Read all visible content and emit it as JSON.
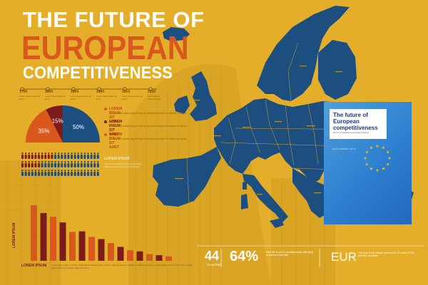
{
  "header": {
    "line1": "THE FUTURE OF",
    "line2": "EUROPEAN",
    "line3": "COMPETITIVENESS"
  },
  "timeline": {
    "years": [
      "1700",
      "1800",
      "1900",
      "1960",
      "2010",
      "2020"
    ],
    "captions": [
      "Lorem ipsum dolor sit amet",
      "Lorem ipsum dolor sit amet",
      "Lorem ipsum dolor sit amet",
      "Lorem ipsum dolor sit amet",
      "Lorem ipsum dolor sit amet",
      "Lorem ipsum dolor sit amet"
    ]
  },
  "pie": {
    "slices": [
      {
        "label": "50%",
        "value": 50,
        "color": "#1c4f80"
      },
      {
        "label": "35%",
        "value": 35,
        "color": "#d9581e"
      },
      {
        "label": "15%",
        "value": 15,
        "color": "#7d1a1a"
      }
    ]
  },
  "legend": [
    {
      "title": "LOREM IPSUM SIT AMET",
      "text": "Consectetur adipiscing elit sed do eiusmod tempor incididunt ut labore",
      "color": "#d9581e"
    },
    {
      "title": "LOREM IPSUM SIT AMET",
      "text": "Consectetur adipiscing elit sed do eiusmod tempor incididunt ut labore",
      "color": "#7d1a1a"
    },
    {
      "title": "LOREM IPSUM SIT AMET",
      "text": "Consectetur adipiscing elit sed do eiusmod tempor incididunt ut labore",
      "color": "#d9581e"
    }
  ],
  "people": {
    "label": "LOREM IPSUM",
    "text": "Lorem ipsum dolor sit amet consectetur adipiscing elit sed do eiusmod tempor"
  },
  "bars": {
    "axis_label": "LOREM IPSUM",
    "bottom_label": "LOREM IPSUM",
    "caption": "Lorem ipsum dolor sit amet, consectetur adipiscing elit, sed do eiusmod tempor incididunt ut labore et dolore magna aliqua. Ut enim ad minim veniam, quis nostrud exercitation ullamco laboris.",
    "chart_data": {
      "type": "bar",
      "values": [
        100,
        86,
        79,
        69,
        52,
        53,
        43,
        39,
        32,
        25,
        19,
        17,
        12,
        10,
        8
      ],
      "colors": [
        "#d9581e",
        "#7d1a1a",
        "#d9581e",
        "#7d1a1a",
        "#d9581e",
        "#7d1a1a",
        "#d9581e",
        "#7d1a1a",
        "#d9581e",
        "#7d1a1a",
        "#d9581e",
        "#7d1a1a",
        "#d9581e",
        "#7d1a1a",
        "#d9581e"
      ]
    }
  },
  "stats": {
    "s1_num": "44",
    "s1_label": "COUNTRIES",
    "s2_num": "64%",
    "s2_label": "Over 64 % of EU countries trade with other countries in the bloc",
    "s3_num": "EUR",
    "s3_label": "The euro is the official currency for 20 of the 27 EU member countries"
  },
  "cover": {
    "title": "The future of European competitiveness",
    "subtitle": "Part A | A competitiveness strategy for Europe",
    "date": "SEPTEMBER 2024"
  },
  "colors": {
    "background": "#e5ae2a",
    "map": "#1c4f80",
    "orange": "#d9581e",
    "maroon": "#7d1a1a"
  }
}
